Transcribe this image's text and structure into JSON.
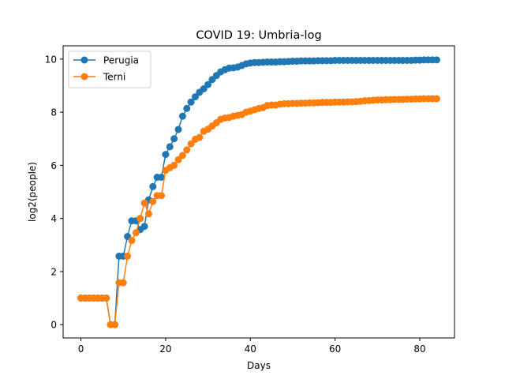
{
  "chart_data": {
    "type": "line",
    "title": "COVID 19: Umbria-log",
    "xlabel": "Days",
    "ylabel": "log2(people)",
    "xlim": [
      -4.2,
      88.2
    ],
    "ylim": [
      -0.5,
      10.5
    ],
    "xticks": [
      0,
      20,
      40,
      60,
      80
    ],
    "yticks": [
      0,
      2,
      4,
      6,
      8,
      10
    ],
    "grid": false,
    "legend_position": "upper-left",
    "series": [
      {
        "name": "Perugia",
        "color": "#1f77b4",
        "x": [
          0,
          1,
          2,
          3,
          4,
          5,
          6,
          7,
          8,
          9,
          10,
          11,
          12,
          13,
          14,
          15,
          16,
          17,
          18,
          19,
          20,
          21,
          22,
          23,
          24,
          25,
          26,
          27,
          28,
          29,
          30,
          31,
          32,
          33,
          34,
          35,
          36,
          37,
          38,
          39,
          40,
          41,
          42,
          43,
          44,
          45,
          46,
          47,
          48,
          49,
          50,
          51,
          52,
          53,
          54,
          55,
          56,
          57,
          58,
          59,
          60,
          61,
          62,
          63,
          64,
          65,
          66,
          67,
          68,
          69,
          70,
          71,
          72,
          73,
          74,
          75,
          76,
          77,
          78,
          79,
          80,
          81,
          82,
          83,
          84
        ],
        "y": [
          1.0,
          1.0,
          1.0,
          1.0,
          1.0,
          1.0,
          1.0,
          0.0,
          0.0,
          2.58,
          2.58,
          3.32,
          3.91,
          3.91,
          3.58,
          3.7,
          4.7,
          5.2,
          5.55,
          5.55,
          6.41,
          6.7,
          7.0,
          7.35,
          7.85,
          8.14,
          8.38,
          8.58,
          8.75,
          8.88,
          9.04,
          9.23,
          9.38,
          9.52,
          9.6,
          9.66,
          9.67,
          9.7,
          9.76,
          9.82,
          9.85,
          9.87,
          9.87,
          9.88,
          9.89,
          9.89,
          9.89,
          9.9,
          9.9,
          9.91,
          9.92,
          9.92,
          9.93,
          9.93,
          9.93,
          9.93,
          9.94,
          9.94,
          9.94,
          9.94,
          9.95,
          9.95,
          9.95,
          9.95,
          9.95,
          9.95,
          9.95,
          9.95,
          9.95,
          9.95,
          9.95,
          9.95,
          9.95,
          9.95,
          9.95,
          9.95,
          9.95,
          9.95,
          9.95,
          9.96,
          9.96,
          9.97,
          9.97,
          9.97,
          9.97
        ]
      },
      {
        "name": "Terni",
        "color": "#ff7f0e",
        "x": [
          0,
          1,
          2,
          3,
          4,
          5,
          6,
          7,
          8,
          9,
          10,
          11,
          12,
          13,
          14,
          15,
          16,
          17,
          18,
          19,
          20,
          21,
          22,
          23,
          24,
          25,
          26,
          27,
          28,
          29,
          30,
          31,
          32,
          33,
          34,
          35,
          36,
          37,
          38,
          39,
          40,
          41,
          42,
          43,
          44,
          45,
          46,
          47,
          48,
          49,
          50,
          51,
          52,
          53,
          54,
          55,
          56,
          57,
          58,
          59,
          60,
          61,
          62,
          63,
          64,
          65,
          66,
          67,
          68,
          69,
          70,
          71,
          72,
          73,
          74,
          75,
          76,
          77,
          78,
          79,
          80,
          81,
          82,
          83,
          84
        ],
        "y": [
          1.0,
          1.0,
          1.0,
          1.0,
          1.0,
          1.0,
          1.0,
          0.0,
          0.0,
          1.58,
          1.58,
          2.58,
          3.17,
          3.46,
          4.0,
          4.58,
          4.17,
          4.64,
          4.86,
          4.86,
          5.81,
          5.91,
          6.0,
          6.21,
          6.37,
          6.58,
          6.81,
          6.98,
          7.05,
          7.28,
          7.36,
          7.48,
          7.6,
          7.73,
          7.78,
          7.8,
          7.85,
          7.88,
          7.91,
          8.0,
          8.04,
          8.09,
          8.14,
          8.17,
          8.25,
          8.27,
          8.27,
          8.3,
          8.32,
          8.32,
          8.33,
          8.33,
          8.34,
          8.34,
          8.35,
          8.35,
          8.36,
          8.37,
          8.37,
          8.37,
          8.38,
          8.38,
          8.38,
          8.39,
          8.39,
          8.4,
          8.41,
          8.43,
          8.44,
          8.45,
          8.46,
          8.46,
          8.47,
          8.47,
          8.48,
          8.48,
          8.48,
          8.49,
          8.49,
          8.5,
          8.5,
          8.51,
          8.51,
          8.51,
          8.51
        ]
      }
    ]
  }
}
